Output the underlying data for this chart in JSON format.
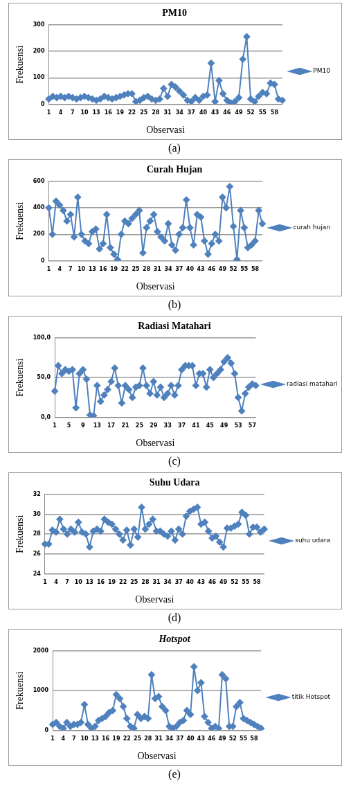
{
  "chart_data": [
    {
      "type": "line",
      "title": "PM10",
      "xlabel": "Observasi",
      "ylabel": "Frekuensi",
      "legend": "right",
      "grid": "y",
      "marker": "diamond",
      "annotations": [
        "(a)"
      ],
      "ylim": [
        0,
        300
      ],
      "yticks": [
        0,
        100,
        200,
        300
      ],
      "categories": [
        "1",
        null,
        null,
        "4",
        null,
        null,
        "7",
        null,
        null,
        "10",
        null,
        null,
        "13",
        null,
        null,
        "16",
        null,
        null,
        "19",
        null,
        null,
        "22",
        null,
        null,
        "25",
        null,
        null,
        "28",
        null,
        null,
        "31",
        null,
        null,
        "34",
        null,
        null,
        "37",
        null,
        null,
        "40",
        null,
        null,
        "43",
        null,
        null,
        "46",
        null,
        null,
        "49",
        null,
        null,
        "52",
        null,
        null,
        "55",
        null,
        null,
        "58",
        null,
        null
      ],
      "series": [
        {
          "name": "PM10",
          "color": "#4f81bd",
          "values": [
            20,
            30,
            25,
            30,
            25,
            30,
            25,
            20,
            25,
            30,
            25,
            20,
            15,
            20,
            30,
            25,
            20,
            25,
            30,
            35,
            40,
            40,
            10,
            15,
            25,
            30,
            20,
            15,
            20,
            60,
            30,
            75,
            65,
            50,
            35,
            15,
            10,
            25,
            15,
            30,
            35,
            155,
            10,
            90,
            40,
            15,
            5,
            10,
            25,
            170,
            255,
            20,
            10,
            30,
            45,
            40,
            80,
            75,
            20,
            15
          ]
        }
      ]
    },
    {
      "type": "line",
      "title": "Curah Hujan",
      "xlabel": "Observasi",
      "ylabel": "Frekuensi",
      "legend": "right",
      "grid": "y",
      "marker": "diamond",
      "annotations": [
        "(b)"
      ],
      "ylim": [
        0,
        600
      ],
      "yticks": [
        0,
        200,
        400,
        600
      ],
      "categories": [
        "1",
        null,
        null,
        "4",
        null,
        null,
        "7",
        null,
        null,
        "10",
        null,
        null,
        "13",
        null,
        null,
        "16",
        null,
        null,
        "19",
        null,
        null,
        "22",
        null,
        null,
        "25",
        null,
        null,
        "28",
        null,
        null,
        "31",
        null,
        null,
        "34",
        null,
        null,
        "37",
        null,
        null,
        "40",
        null,
        null,
        "43",
        null,
        null,
        "46",
        null,
        null,
        "49",
        null,
        null,
        "52",
        null,
        null,
        "55",
        null,
        null,
        "58",
        null,
        null
      ],
      "series": [
        {
          "name": "curah hujan",
          "color": "#4f81bd",
          "values": [
            400,
            200,
            450,
            420,
            380,
            300,
            350,
            180,
            480,
            200,
            150,
            130,
            220,
            240,
            90,
            130,
            350,
            100,
            50,
            10,
            200,
            300,
            280,
            320,
            350,
            380,
            60,
            250,
            300,
            350,
            220,
            180,
            150,
            280,
            120,
            80,
            200,
            250,
            460,
            250,
            120,
            350,
            330,
            150,
            50,
            130,
            200,
            150,
            480,
            400,
            560,
            260,
            10,
            380,
            250,
            100,
            120,
            150,
            380,
            280
          ]
        }
      ]
    },
    {
      "type": "line",
      "title": "Radiasi Matahari",
      "xlabel": "Observasi",
      "ylabel": "Frekuensi",
      "legend": "right",
      "grid": "y",
      "marker": "diamond",
      "annotations": [
        "(c)"
      ],
      "ylim": [
        0,
        100
      ],
      "yticks": [
        {
          "value": 0,
          "label": "0,0"
        },
        {
          "value": 50,
          "label": "50,0"
        },
        {
          "value": 100,
          "label": "100,0"
        }
      ],
      "categories": [
        "1",
        null,
        null,
        null,
        "5",
        null,
        null,
        null,
        "9",
        null,
        null,
        null,
        "13",
        null,
        null,
        null,
        "17",
        null,
        null,
        null,
        "21",
        null,
        null,
        null,
        "25",
        null,
        null,
        null,
        "29",
        null,
        null,
        null,
        "33",
        null,
        null,
        null,
        "37",
        null,
        null,
        null,
        "41",
        null,
        null,
        null,
        "45",
        null,
        null,
        null,
        "49",
        null,
        null,
        null,
        "53",
        null,
        null,
        null,
        "57",
        null
      ],
      "series": [
        {
          "name": "radiasi matahari",
          "color": "#4f81bd",
          "values": [
            33,
            65,
            55,
            60,
            58,
            60,
            12,
            55,
            60,
            48,
            3,
            2,
            40,
            20,
            28,
            35,
            45,
            62,
            40,
            18,
            40,
            35,
            25,
            38,
            40,
            62,
            40,
            30,
            45,
            28,
            38,
            25,
            30,
            40,
            28,
            40,
            60,
            65,
            65,
            65,
            40,
            55,
            55,
            38,
            60,
            50,
            55,
            60,
            70,
            75,
            68,
            55,
            25,
            8,
            30,
            38,
            42,
            40
          ]
        }
      ]
    },
    {
      "type": "line",
      "title": "Suhu Udara",
      "xlabel": "Observasi",
      "ylabel": "Frekuensi",
      "legend": "right",
      "grid": "y",
      "marker": "diamond",
      "annotations": [
        "(d)"
      ],
      "ylim": [
        24,
        32
      ],
      "yticks": [
        24,
        26,
        28,
        30,
        32
      ],
      "categories": [
        "1",
        null,
        null,
        "4",
        null,
        null,
        "7",
        null,
        null,
        "10",
        null,
        null,
        "13",
        null,
        null,
        "16",
        null,
        null,
        "19",
        null,
        null,
        "22",
        null,
        null,
        "25",
        null,
        null,
        "28",
        null,
        null,
        "31",
        null,
        null,
        "34",
        null,
        null,
        "37",
        null,
        null,
        "40",
        null,
        null,
        "43",
        null,
        null,
        "46",
        null,
        null,
        "49",
        null,
        null,
        "52",
        null,
        null,
        "55",
        null,
        null,
        "58",
        null,
        null
      ],
      "series": [
        {
          "name": "suhu udara",
          "color": "#4f81bd",
          "values": [
            27,
            27,
            28.4,
            28.2,
            29.5,
            28.5,
            28,
            28.5,
            28.2,
            29.2,
            28.2,
            28,
            26.7,
            28.3,
            28.5,
            28.3,
            29.5,
            29.2,
            29,
            28.5,
            28,
            27.4,
            28.4,
            26.9,
            28.5,
            27.7,
            30.7,
            28.5,
            29,
            29.5,
            28.3,
            28.3,
            28,
            27.8,
            28.3,
            27.4,
            28.5,
            28,
            29.8,
            30.3,
            30.5,
            30.7,
            29,
            29.2,
            28.3,
            27.6,
            27.8,
            27.2,
            26.7,
            28.6,
            28.6,
            28.8,
            29,
            30.2,
            29.9,
            28,
            28.7,
            28.7,
            28.2,
            28.5
          ]
        }
      ]
    },
    {
      "type": "line",
      "title": "Hotspot",
      "xlabel": "Observasi",
      "ylabel": "Frekuensi",
      "legend": "right",
      "grid": "y",
      "marker": "diamond",
      "annotations": [
        "(e)"
      ],
      "ylim": [
        0,
        2000
      ],
      "yticks": [
        0,
        1000,
        2000
      ],
      "categories": [
        "1",
        null,
        null,
        "4",
        null,
        null,
        "7",
        null,
        null,
        "10",
        null,
        null,
        "13",
        null,
        null,
        "16",
        null,
        null,
        "19",
        null,
        null,
        "22",
        null,
        null,
        "25",
        null,
        null,
        "28",
        null,
        null,
        "31",
        null,
        null,
        "34",
        null,
        null,
        "37",
        null,
        null,
        "40",
        null,
        null,
        "43",
        null,
        null,
        "46",
        null,
        null,
        "49",
        null,
        null,
        "52",
        null,
        null,
        "55",
        null,
        null,
        "58",
        null,
        null
      ],
      "series": [
        {
          "name": "titik Hotspot",
          "color": "#4f81bd",
          "values": [
            150,
            200,
            100,
            50,
            200,
            100,
            150,
            150,
            200,
            650,
            150,
            50,
            100,
            250,
            300,
            350,
            450,
            500,
            900,
            800,
            600,
            300,
            100,
            50,
            400,
            300,
            350,
            300,
            1400,
            800,
            850,
            600,
            500,
            100,
            50,
            100,
            200,
            250,
            500,
            400,
            1600,
            1000,
            1200,
            350,
            200,
            50,
            100,
            50,
            1400,
            1300,
            100,
            100,
            600,
            700,
            300,
            250,
            200,
            150,
            100,
            50
          ]
        }
      ]
    }
  ]
}
